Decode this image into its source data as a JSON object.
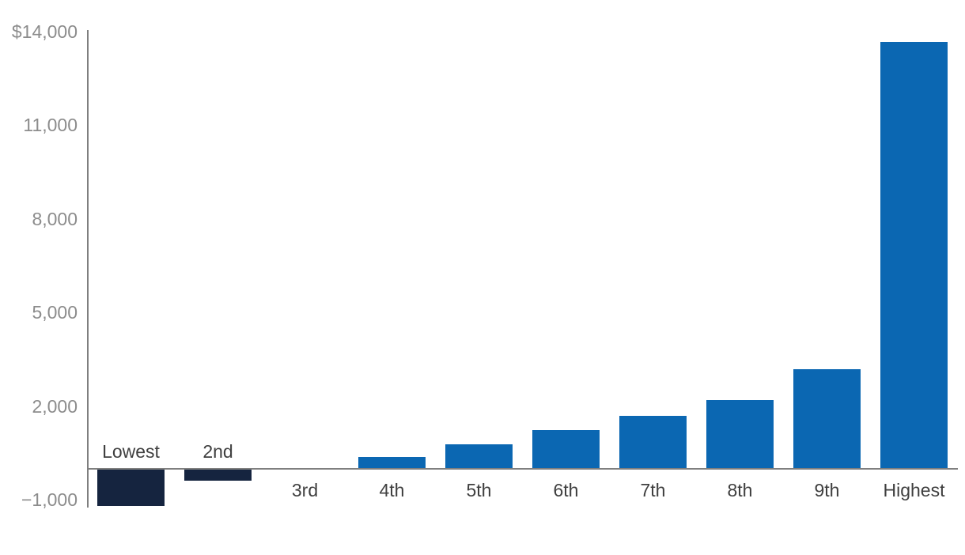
{
  "chart_data": {
    "type": "bar",
    "title": "",
    "xlabel": "",
    "ylabel": "",
    "categories": [
      "Lowest",
      "2nd",
      "3rd",
      "4th",
      "5th",
      "6th",
      "7th",
      "8th",
      "9th",
      "Highest"
    ],
    "values": [
      -1200,
      -400,
      0,
      360,
      770,
      1210,
      1660,
      2170,
      3180,
      13650
    ],
    "ylim": [
      -1250,
      14000
    ],
    "y_ticks": [
      {
        "label": "$14,000",
        "value": 14000
      },
      {
        "label": "11,000",
        "value": 11000
      },
      {
        "label": "8,000",
        "value": 8000
      },
      {
        "label": "5,000",
        "value": 5000
      },
      {
        "label": "2,000",
        "value": 2000
      },
      {
        "label": "−1,000",
        "value": -1000
      }
    ],
    "grid": false,
    "legend": false,
    "negative_label_position": "above-axis",
    "positive_label_position": "below-axis"
  },
  "colors": {
    "positive_bar": "#0b67b2",
    "negative_bar": "#15243f",
    "axis_line": "#7f7f7f",
    "tick_label": "#8c8c8c",
    "category_label": "#3f3f3f",
    "background": "#ffffff"
  }
}
